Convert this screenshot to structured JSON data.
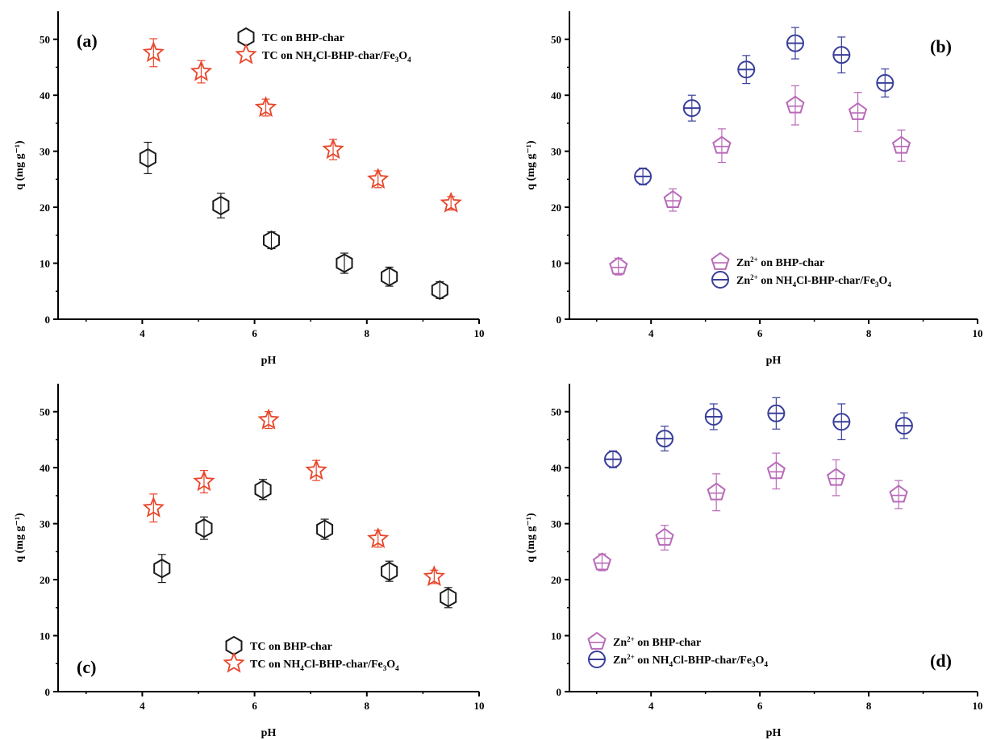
{
  "colors": {
    "black": "#1a1a1a",
    "red": "#e8462a",
    "violet": "#b86ab8",
    "navy": "#3a3f9a"
  },
  "chart_data": [
    {
      "panel": "(a)",
      "type": "scatter",
      "xlabel": "pH",
      "ylabel": "q (mg g⁻¹)",
      "xlim": [
        2.5,
        10
      ],
      "ylim": [
        0,
        55
      ],
      "xticks": [
        "4",
        "6",
        "8",
        "10"
      ],
      "yticks": [
        "0",
        "10",
        "20",
        "30",
        "40",
        "50"
      ],
      "legend_position": "top-center",
      "series": [
        {
          "name": "TC on BHP-char",
          "marker": "hexagon",
          "color": "black",
          "x": [
            4.1,
            5.4,
            6.3,
            7.6,
            8.4,
            9.3
          ],
          "y": [
            28.8,
            20.3,
            14.1,
            10.0,
            7.6,
            5.2
          ],
          "err": [
            2.8,
            2.2,
            1.5,
            1.8,
            1.7,
            1.5
          ]
        },
        {
          "name": "TC on NH4Cl-BHP-char/Fe3O4",
          "marker": "star",
          "color": "red",
          "x": [
            4.2,
            5.05,
            6.2,
            7.4,
            8.2,
            9.5
          ],
          "y": [
            47.6,
            44.2,
            37.8,
            30.3,
            25.0,
            20.7
          ],
          "err": [
            2.5,
            2.0,
            1.5,
            1.8,
            1.5,
            1.2
          ]
        }
      ]
    },
    {
      "panel": "(b)",
      "type": "scatter",
      "xlabel": "pH",
      "ylabel": "q (mg g⁻¹)",
      "xlim": [
        2.5,
        10
      ],
      "ylim": [
        0,
        55
      ],
      "xticks": [
        "4",
        "6",
        "8",
        "10"
      ],
      "yticks": [
        "0",
        "10",
        "20",
        "30",
        "40",
        "50"
      ],
      "legend_position": "bottom-center",
      "series": [
        {
          "name": "Zn2+ on BHP-char",
          "marker": "pentagon",
          "color": "violet",
          "x": [
            3.4,
            4.4,
            5.3,
            6.65,
            7.8,
            8.6
          ],
          "y": [
            9.4,
            21.3,
            31.0,
            38.2,
            37.0,
            31.0
          ],
          "err": [
            1.5,
            2.0,
            3.0,
            3.5,
            3.5,
            2.8
          ]
        },
        {
          "name": "Zn2+ on NH4Cl-BHP-char/Fe3O4",
          "marker": "circle",
          "color": "navy",
          "x": [
            3.85,
            4.75,
            5.75,
            6.65,
            7.5,
            8.3
          ],
          "y": [
            25.5,
            37.7,
            44.6,
            49.3,
            47.2,
            42.2
          ],
          "err": [
            1.5,
            2.3,
            2.5,
            2.8,
            3.2,
            2.5
          ]
        }
      ]
    },
    {
      "panel": "(c)",
      "type": "scatter",
      "xlabel": "pH",
      "ylabel": "q (mg g⁻¹)",
      "xlim": [
        2.5,
        10
      ],
      "ylim": [
        0,
        55
      ],
      "xticks": [
        "4",
        "6",
        "8",
        "10"
      ],
      "yticks": [
        "0",
        "10",
        "20",
        "30",
        "40",
        "50"
      ],
      "legend_position": "bottom-center",
      "series": [
        {
          "name": "TC on BHP-char",
          "marker": "hexagon",
          "color": "black",
          "x": [
            4.35,
            5.1,
            6.15,
            7.25,
            8.4,
            9.45
          ],
          "y": [
            22.0,
            29.2,
            36.1,
            29.0,
            21.5,
            16.8
          ],
          "err": [
            2.5,
            2.0,
            1.8,
            1.8,
            1.8,
            1.8
          ]
        },
        {
          "name": "TC on NH4Cl-BHP-char/Fe3O4",
          "marker": "star",
          "color": "red",
          "x": [
            4.2,
            5.1,
            6.25,
            7.1,
            8.2,
            9.2
          ],
          "y": [
            32.8,
            37.5,
            48.5,
            39.5,
            27.3,
            20.5
          ],
          "err": [
            2.5,
            2.0,
            1.5,
            1.8,
            1.5,
            1.2
          ]
        }
      ]
    },
    {
      "panel": "(d)",
      "type": "scatter",
      "xlabel": "pH",
      "ylabel": "q (mg g⁻¹)",
      "xlim": [
        2.5,
        10
      ],
      "ylim": [
        0,
        55
      ],
      "xticks": [
        "4",
        "6",
        "8",
        "10"
      ],
      "yticks": [
        "0",
        "10",
        "20",
        "30",
        "40",
        "50"
      ],
      "legend_position": "bottom-left",
      "series": [
        {
          "name": "Zn2+ on BHP-char",
          "marker": "pentagon",
          "color": "violet",
          "x": [
            3.1,
            4.25,
            5.2,
            6.3,
            7.4,
            8.55
          ],
          "y": [
            23.1,
            27.5,
            35.6,
            39.4,
            38.2,
            35.2
          ],
          "err": [
            1.5,
            2.2,
            3.3,
            3.2,
            3.2,
            2.5
          ]
        },
        {
          "name": "Zn2+ on NH4Cl-BHP-char/Fe3O4",
          "marker": "circle",
          "color": "navy",
          "x": [
            3.3,
            4.25,
            5.15,
            6.3,
            7.5,
            8.65
          ],
          "y": [
            41.5,
            45.2,
            49.1,
            49.7,
            48.2,
            47.5
          ],
          "err": [
            1.5,
            2.2,
            2.3,
            2.8,
            3.2,
            2.3
          ]
        }
      ]
    }
  ]
}
